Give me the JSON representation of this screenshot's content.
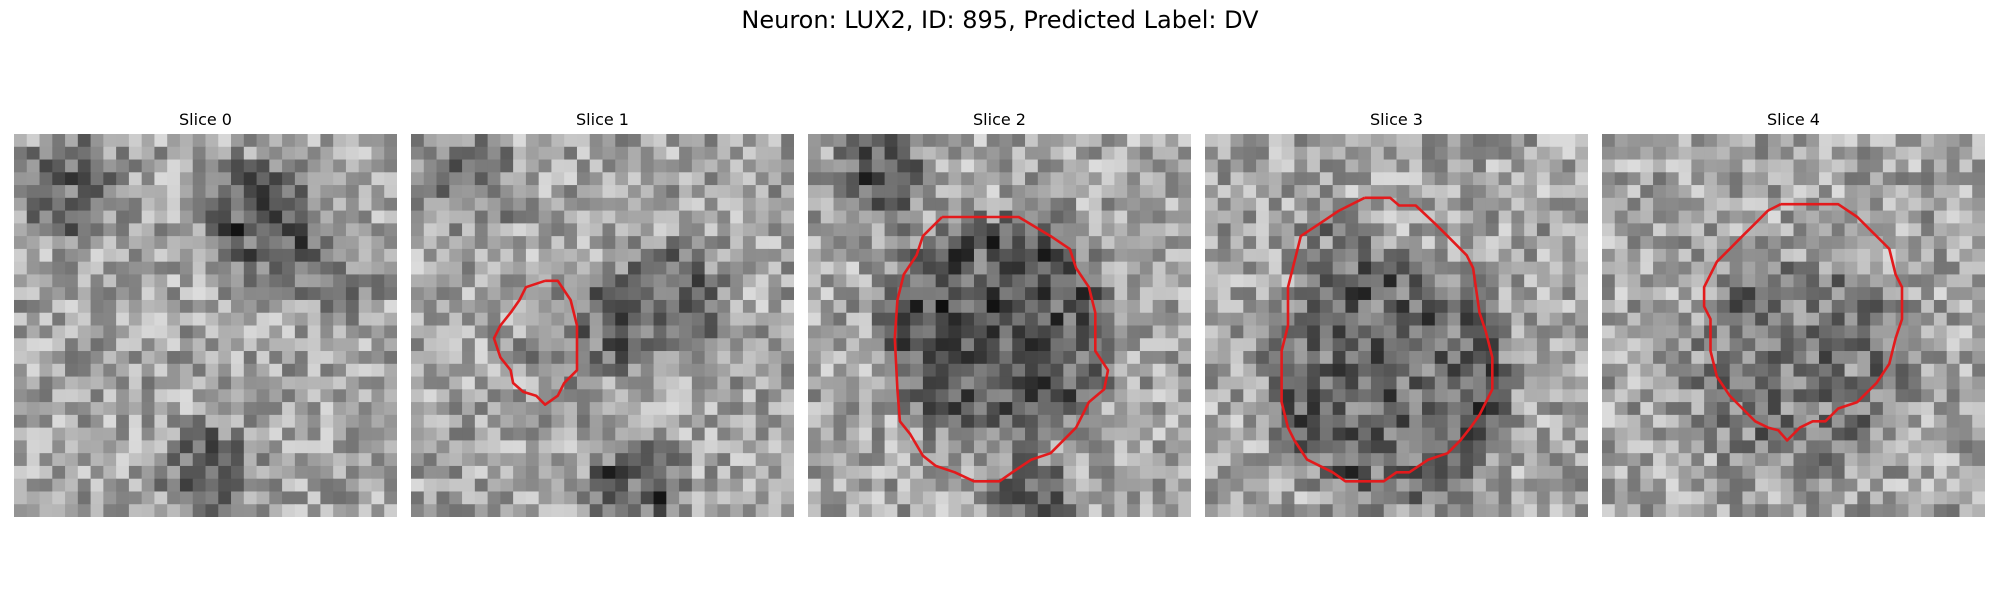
{
  "figure": {
    "title": "Neuron: LUX2, ID: 895, Predicted Label: DV",
    "colormap": "gray",
    "contour_color": "#e31a1c",
    "grid_size": 30
  },
  "slices": [
    {
      "title": "Slice 0",
      "has_contour": false
    },
    {
      "title": "Slice 1",
      "has_contour": true
    },
    {
      "title": "Slice 2",
      "has_contour": true
    },
    {
      "title": "Slice 3",
      "has_contour": true
    },
    {
      "title": "Slice 4",
      "has_contour": true
    }
  ]
}
